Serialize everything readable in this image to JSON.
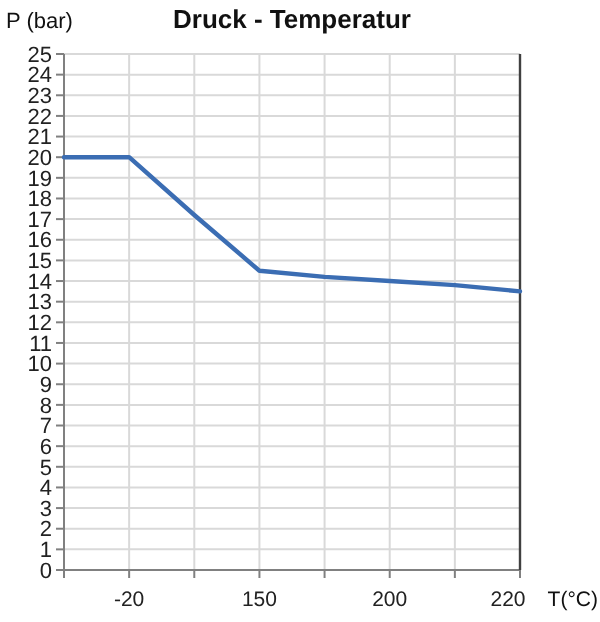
{
  "chart_data": {
    "type": "line",
    "title": "Druck - Temperatur",
    "xlabel": "T(°C)",
    "ylabel": "P (bar)",
    "categories": [
      null,
      "-20",
      null,
      "150",
      null,
      "200",
      null,
      "220"
    ],
    "series": [
      {
        "color": "#3b6db3",
        "values": [
          20,
          20,
          17.2,
          14.5,
          14.2,
          14,
          13.8,
          13.5
        ]
      }
    ],
    "ylim": [
      0,
      25
    ],
    "yticks": [
      0,
      1,
      2,
      3,
      4,
      5,
      6,
      7,
      8,
      9,
      10,
      11,
      12,
      13,
      14,
      15,
      16,
      17,
      18,
      19,
      20,
      21,
      22,
      23,
      24,
      25
    ],
    "grid": true,
    "marker": "none",
    "line_style": "solid"
  }
}
